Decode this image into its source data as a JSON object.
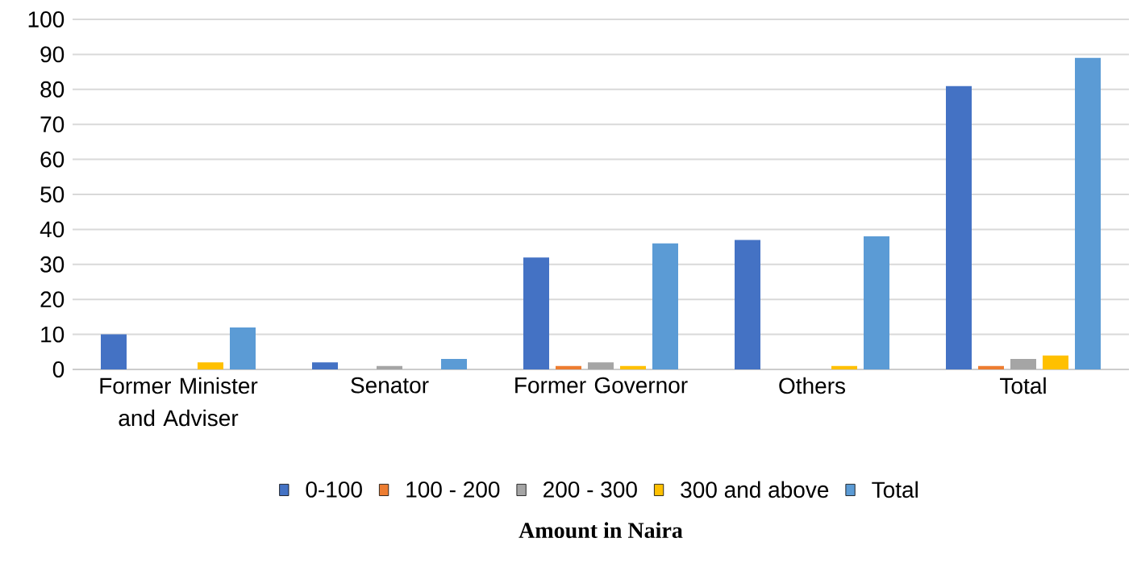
{
  "chart_data": {
    "type": "bar",
    "xlabel": "Amount in Naira",
    "categories": [
      "Former Minister and Adviser",
      "Senator",
      "Former Governor",
      "Others",
      "Total"
    ],
    "series": [
      {
        "name": "0-100",
        "color": "#4472c4",
        "values": [
          10,
          2,
          32,
          37,
          81
        ]
      },
      {
        "name": "100 - 200",
        "color": "#ed7d31",
        "values": [
          0,
          0,
          1,
          0,
          1
        ]
      },
      {
        "name": "200 - 300",
        "color": "#a5a5a5",
        "values": [
          0,
          1,
          2,
          0,
          3
        ]
      },
      {
        "name": "300 and above",
        "color": "#ffc000",
        "values": [
          2,
          0,
          1,
          1,
          4
        ]
      },
      {
        "name": "Total",
        "color": "#5b9bd5",
        "values": [
          12,
          3,
          36,
          38,
          89
        ]
      }
    ],
    "ylim": [
      0,
      100
    ],
    "yticks": [
      0,
      10,
      20,
      30,
      40,
      50,
      60,
      70,
      80,
      90,
      100
    ],
    "grid": "y",
    "legend": "bottom"
  }
}
